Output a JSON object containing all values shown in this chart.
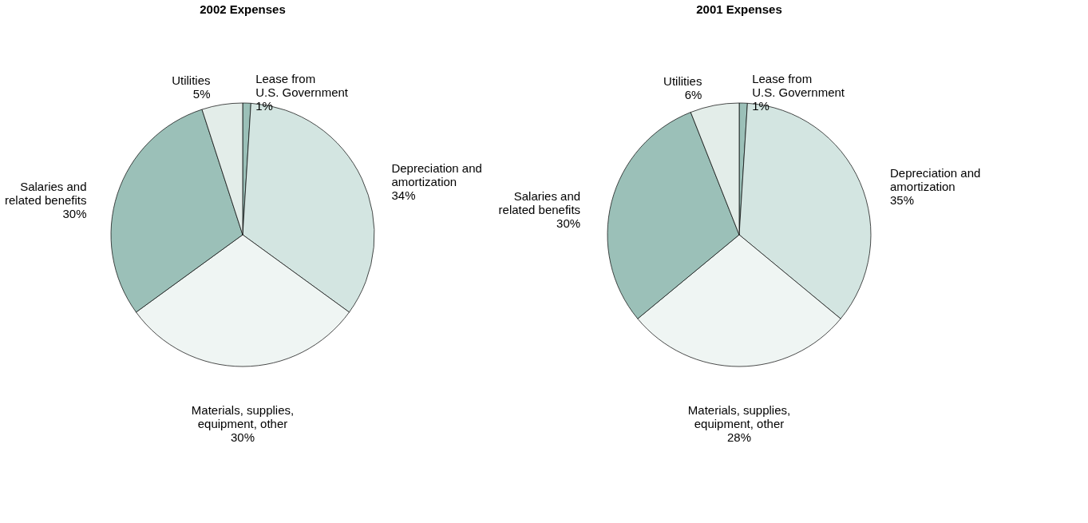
{
  "chart_data": [
    {
      "type": "pie",
      "title": "2002 Expenses",
      "categories": [
        "Lease from\nU.S. Government",
        "Depreciation and\namortization",
        "Materials, supplies,\nequipment, other",
        "Salaries and\nrelated benefits",
        "Utilities"
      ],
      "values": [
        1,
        34,
        30,
        30,
        5
      ],
      "value_labels": [
        "1%",
        "34%",
        "30%",
        "30%",
        "5%"
      ],
      "colors": [
        "#9bc0b8",
        "#d3e5e1",
        "#eff5f3",
        "#9bc0b8",
        "#e3ede9"
      ]
    },
    {
      "type": "pie",
      "title": "2001 Expenses",
      "categories": [
        "Lease from\nU.S. Government",
        "Depreciation and\namortization",
        "Materials, supplies,\nequipment, other",
        "Salaries and\nrelated benefits",
        "Utilities"
      ],
      "values": [
        1,
        35,
        28,
        30,
        6
      ],
      "value_labels": [
        "1%",
        "35%",
        "28%",
        "30%",
        "6%"
      ],
      "colors": [
        "#9bc0b8",
        "#d3e5e1",
        "#eff5f3",
        "#9bc0b8",
        "#e3ede9"
      ]
    }
  ]
}
